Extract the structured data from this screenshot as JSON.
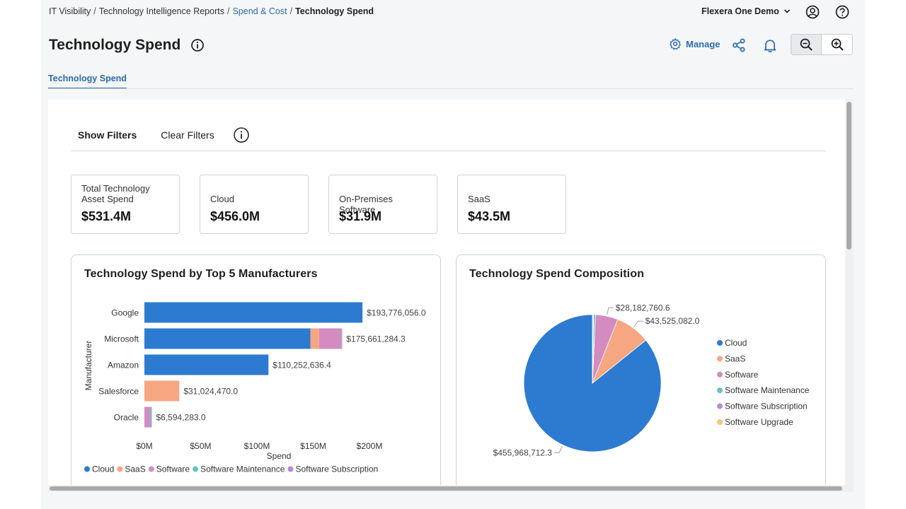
{
  "breadcrumb": {
    "items": [
      {
        "label": "IT Visibility"
      },
      {
        "label": "Technology Intelligence Reports"
      },
      {
        "label": "Spend & Cost"
      },
      {
        "label": "Technology Spend"
      }
    ],
    "separator": "/"
  },
  "org_selector": {
    "label": "Flexera One Demo",
    "icon": "chevron-down-icon"
  },
  "header_icons": [
    "user-circle-icon",
    "help-icon"
  ],
  "page": {
    "title": "Technology Spend",
    "info_icon": "info-icon"
  },
  "actions": {
    "manage_label": "Manage",
    "icons": [
      "gear-icon",
      "share-icon",
      "bell-icon",
      "zoom-out-icon",
      "zoom-in-icon"
    ]
  },
  "tabs": [
    {
      "label": "Technology Spend",
      "active": true
    }
  ],
  "filters": {
    "show_label": "Show Filters",
    "clear_label": "Clear Filters"
  },
  "kpis": [
    {
      "label": "Total Technology Asset Spend",
      "value": "$531.4M"
    },
    {
      "label": "Cloud",
      "value": "$456.0M"
    },
    {
      "label": "On-Premises Software",
      "value": "$31.9M"
    },
    {
      "label": "SaaS",
      "value": "$43.5M"
    }
  ],
  "colors": {
    "accent": "#2b6cb0",
    "Cloud": "#2d7bd0",
    "SaaS": "#f7a682",
    "Software": "#d48bbf",
    "Software Maintenance": "#67c1c7",
    "Software Subscription": "#b98ad2",
    "Software Upgrade": "#f7c67a"
  },
  "chart_data": [
    {
      "type": "bar",
      "orientation": "horizontal",
      "stacked": true,
      "title": "Technology Spend by Top 5 Manufacturers",
      "xlabel": "Spend",
      "ylabel": "Manufacturer",
      "xlim": [
        0,
        200000000
      ],
      "x_ticks": [
        0,
        50000000,
        100000000,
        150000000,
        200000000
      ],
      "x_tick_labels": [
        "$0M",
        "$50M",
        "$100M",
        "$150M",
        "$200M"
      ],
      "categories": [
        "Google",
        "Microsoft",
        "Amazon",
        "Salesforce",
        "Oracle"
      ],
      "series": [
        {
          "name": "Cloud",
          "values": [
            193776056.0,
            147500000,
            110252636.4,
            0,
            0
          ]
        },
        {
          "name": "SaaS",
          "values": [
            0,
            7800000,
            0,
            31024470.0,
            0
          ]
        },
        {
          "name": "Software",
          "values": [
            0,
            19761284.3,
            0,
            0,
            4800000
          ]
        },
        {
          "name": "Software Maintenance",
          "values": [
            0,
            300000,
            0,
            0,
            1000000
          ]
        },
        {
          "name": "Software Subscription",
          "values": [
            0,
            300000,
            0,
            0,
            794283.0
          ]
        }
      ],
      "data_labels": [
        "$193,776,056.0",
        "$175,661,284.3",
        "$110,252,636.4",
        "$31,024,470.0",
        "$6,594,283.0"
      ],
      "legend": [
        "Cloud",
        "SaaS",
        "Software",
        "Software Maintenance",
        "Software Subscription"
      ],
      "legend_position": "bottom"
    },
    {
      "type": "pie",
      "title": "Technology Spend Composition",
      "slices": [
        {
          "name": "Cloud",
          "value": 455968712.3,
          "label": "$455,968,712.3"
        },
        {
          "name": "SaaS",
          "value": 43525082.0,
          "label": "$43,525,082.0"
        },
        {
          "name": "Software",
          "value": 28182760.6,
          "label": "$28,182,760.6"
        },
        {
          "name": "Software Maintenance",
          "value": 2300000,
          "label": ""
        },
        {
          "name": "Software Subscription",
          "value": 1100000,
          "label": ""
        },
        {
          "name": "Software Upgrade",
          "value": 300000,
          "label": ""
        }
      ],
      "legend": [
        "Cloud",
        "SaaS",
        "Software",
        "Software Maintenance",
        "Software Subscription",
        "Software Upgrade"
      ],
      "legend_position": "right"
    }
  ]
}
